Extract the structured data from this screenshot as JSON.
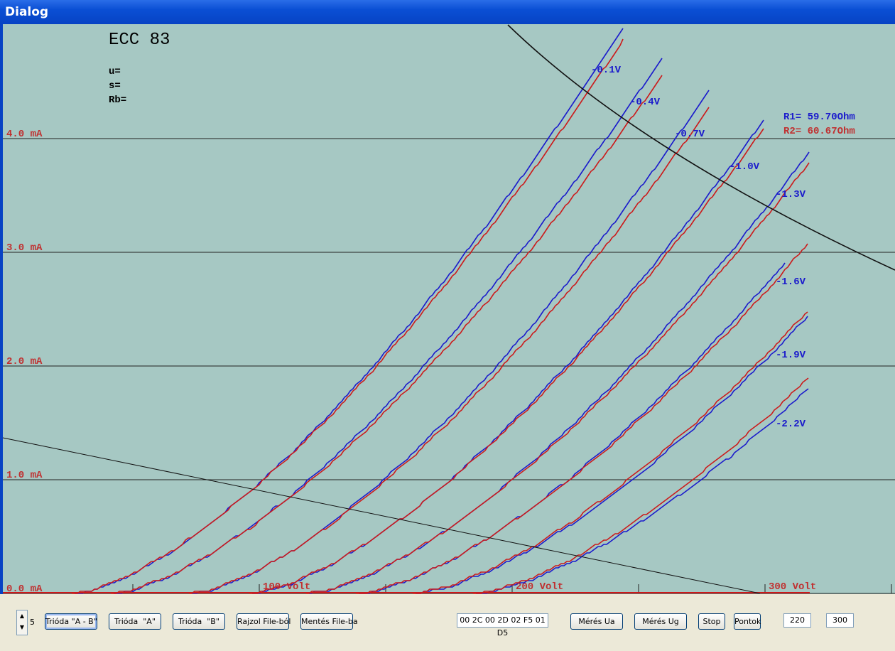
{
  "window": {
    "title": "Dialog"
  },
  "plot": {
    "tube": "ECC 83",
    "params": [
      "u=",
      "s=",
      "Rb="
    ],
    "y_labels": [
      "4.0 mA",
      "3.0 mA",
      "2.0 mA",
      "1.0 mA",
      "0.0 mA"
    ],
    "x_labels": [
      "100 Volt",
      "200 Volt",
      "300 Volt"
    ],
    "grid_voltages": [
      "-0.1V",
      "-0.4V",
      "-0.7V",
      "-1.0V",
      "-1.3V",
      "-1.6V",
      "-1.9V",
      "-2.2V"
    ],
    "r1": "R1= 59.70Ohm",
    "r2": "R2= 60.67Ohm"
  },
  "controls": {
    "spin_value": "5",
    "left_buttons": [
      "Trióda \"A - B\"",
      "Trióda  \"A\"",
      "Trióda  \"B\"",
      "Rajzol File-ból",
      "Mentés File-ba"
    ],
    "hex_field": "00 2C 00 2D 02 F5 01 D5",
    "right_buttons": [
      "Mérés Ua",
      "Mérés Ug",
      "Stop",
      "Pontok"
    ],
    "fields": [
      "220",
      "300"
    ]
  }
}
